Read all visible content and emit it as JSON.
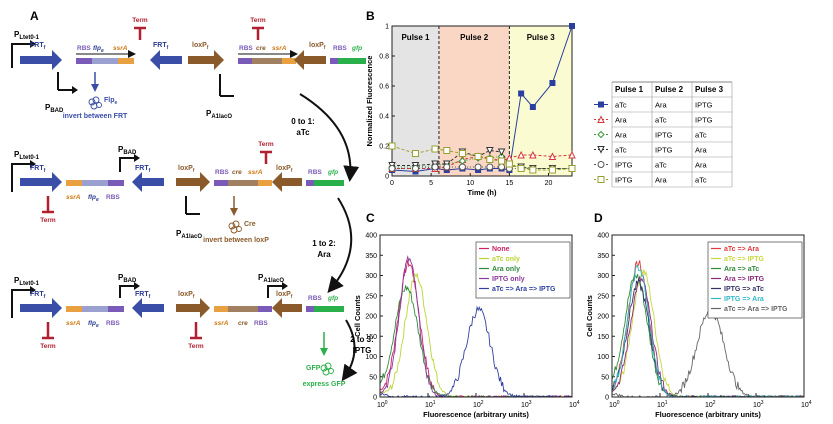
{
  "panelA": {
    "label": "A",
    "promoters": {
      "pLtet": "P",
      "pLtet_sub": "Ltet0-1",
      "pBAD": "P",
      "pBAD_sub": "BAD",
      "pA1": "P",
      "pA1_sub": "A1lacO"
    },
    "parts": {
      "frt": "FRT",
      "frt_sub": "f",
      "loxp": "loxP",
      "loxp_sub": "f",
      "rbs": "RBS",
      "flp": "flp",
      "flp_sub": "e",
      "ssrA": "ssrA",
      "cre": "cre",
      "gfp": "gfp",
      "term": "Term"
    },
    "actions": {
      "flpe_label": "Flp",
      "flpe_sub": "e",
      "flpe_action": "invert between FRT",
      "cre_label": "Cre",
      "cre_action": "invert between loxP",
      "gfp_label": "GFP",
      "gfp_action": "express GFP"
    },
    "transitions": [
      {
        "line1": "0 to 1:",
        "line2": "aTc"
      },
      {
        "line1": "1 to 2:",
        "line2": "Ara"
      },
      {
        "line1": "2 to 3:",
        "line2": "IPTG"
      }
    ]
  },
  "panelB": {
    "label": "B",
    "pulse_labels": [
      "Pulse 1",
      "Pulse 2",
      "Pulse 3"
    ],
    "pulse_colors": [
      "#e4e4e4",
      "#f9d7c4",
      "#fbfbd2"
    ]
  },
  "legendTable": {
    "headers": [
      "Pulse 1",
      "Pulse 2",
      "Pulse 3"
    ],
    "rows": [
      [
        "aTc",
        "Ara",
        "IPTG"
      ],
      [
        "Ara",
        "aTc",
        "IPTG"
      ],
      [
        "Ara",
        "IPTG",
        "aTc"
      ],
      [
        "aTc",
        "IPTG",
        "Ara"
      ],
      [
        "IPTG",
        "aTc",
        "Ara"
      ],
      [
        "IPTG",
        "Ara",
        "aTc"
      ]
    ]
  },
  "panelC": {
    "label": "C"
  },
  "panelD": {
    "label": "D"
  },
  "chart_data": [
    {
      "type": "line",
      "xlabel": "Time (h)",
      "ylabel": "Normalized Fluorescence",
      "xlim": [
        0,
        23
      ],
      "ylim": [
        0,
        1
      ],
      "xticks": [
        "0",
        "5",
        "10",
        "15",
        "20"
      ],
      "yticks": [
        "0",
        "0.2",
        "0.4",
        "0.6",
        "0.8",
        "1"
      ],
      "pulse_boundaries": [
        6,
        15
      ],
      "x": [
        0,
        3,
        5.5,
        7,
        9,
        11,
        12.5,
        14,
        15,
        16.5,
        18,
        20.5,
        23
      ],
      "series": [
        {
          "values": [
            0.04,
            0.03,
            0.05,
            0.04,
            0.05,
            0.04,
            0.05,
            0.05,
            0.04,
            0.55,
            0.46,
            0.62,
            1.0
          ],
          "color": "#2a3fa0",
          "marker": "square-filled"
        },
        {
          "values": [
            0.05,
            0.05,
            0.05,
            0.06,
            0.11,
            0.13,
            0.12,
            0.1,
            0.12,
            0.14,
            0.14,
            0.13,
            0.14
          ],
          "color": "#d63a3a",
          "marker": "triangle-open"
        },
        {
          "values": [
            0.06,
            0.06,
            0.07,
            0.08,
            0.1,
            0.12,
            0.12,
            0.13,
            0.08,
            0.06,
            0.05,
            0.05,
            0.05
          ],
          "color": "#3a9a3a",
          "marker": "diamond-open"
        },
        {
          "values": [
            0.07,
            0.07,
            0.08,
            0.08,
            0.16,
            0.13,
            0.17,
            0.16,
            0.07,
            0.06,
            0.05,
            0.05,
            0.05
          ],
          "color": "#333333",
          "marker": "triangle-down-open"
        },
        {
          "values": [
            0.05,
            0.05,
            0.06,
            0.06,
            0.06,
            0.06,
            0.06,
            0.06,
            0.05,
            0.05,
            0.05,
            0.05,
            0.05
          ],
          "color": "#555555",
          "marker": "circle-open"
        },
        {
          "values": [
            0.2,
            0.15,
            0.18,
            0.17,
            0.15,
            0.13,
            0.11,
            0.1,
            0.08,
            0.05,
            0.04,
            0.04,
            0.05
          ],
          "color": "#9aa030",
          "marker": "square-open"
        }
      ]
    },
    {
      "type": "line",
      "xlabel": "Fluorescence (arbitrary units)",
      "ylabel": "Cell Counts",
      "xscale": "log",
      "xlim": [
        1,
        10000
      ],
      "ylim": [
        0,
        400
      ],
      "yticks": [
        "0",
        "50",
        "100",
        "150",
        "200",
        "250",
        "300",
        "350",
        "400"
      ],
      "series": [
        {
          "name": "None",
          "color": "#cc2266",
          "peak_log10": 0.6,
          "height": 330,
          "width": 0.22
        },
        {
          "name": "aTc only",
          "color": "#bcd436",
          "peak_log10": 0.75,
          "height": 300,
          "width": 0.23
        },
        {
          "name": "Ara only",
          "color": "#2e8b3a",
          "peak_log10": 0.55,
          "height": 270,
          "width": 0.25
        },
        {
          "name": "IPTG only",
          "color": "#8b3a9a",
          "peak_log10": 0.6,
          "height": 340,
          "width": 0.2
        },
        {
          "name": "aTc => Ara => IPTG",
          "color": "#3340a0",
          "peak_log10": 2.05,
          "height": 215,
          "width": 0.25
        }
      ]
    },
    {
      "type": "line",
      "xlabel": "Fluorescence (arbitrary units)",
      "ylabel": "Cell Counts",
      "xscale": "log",
      "xlim": [
        1,
        10000
      ],
      "ylim": [
        0,
        400
      ],
      "yticks": [
        "0",
        "50",
        "100",
        "150",
        "200",
        "250",
        "300",
        "350",
        "400"
      ],
      "series": [
        {
          "name": "aTc => Ara",
          "color": "#e03a3a",
          "peak_log10": 0.55,
          "height": 330,
          "width": 0.22
        },
        {
          "name": "aTc => IPTG",
          "color": "#c8d840",
          "peak_log10": 0.65,
          "height": 310,
          "width": 0.23
        },
        {
          "name": "Ara => aTc",
          "color": "#2e8b3a",
          "peak_log10": 0.5,
          "height": 300,
          "width": 0.24
        },
        {
          "name": "Ara => IPTG",
          "color": "#8b2a7a",
          "peak_log10": 0.6,
          "height": 290,
          "width": 0.22
        },
        {
          "name": "IPTG => aTc",
          "color": "#333366",
          "peak_log10": 0.55,
          "height": 280,
          "width": 0.23
        },
        {
          "name": "IPTG => Ara",
          "color": "#30b8c8",
          "peak_log10": 0.55,
          "height": 320,
          "width": 0.22
        },
        {
          "name": "aTc => Ara => IPTG",
          "color": "#666666",
          "peak_log10": 2.05,
          "height": 215,
          "width": 0.28
        }
      ]
    }
  ]
}
